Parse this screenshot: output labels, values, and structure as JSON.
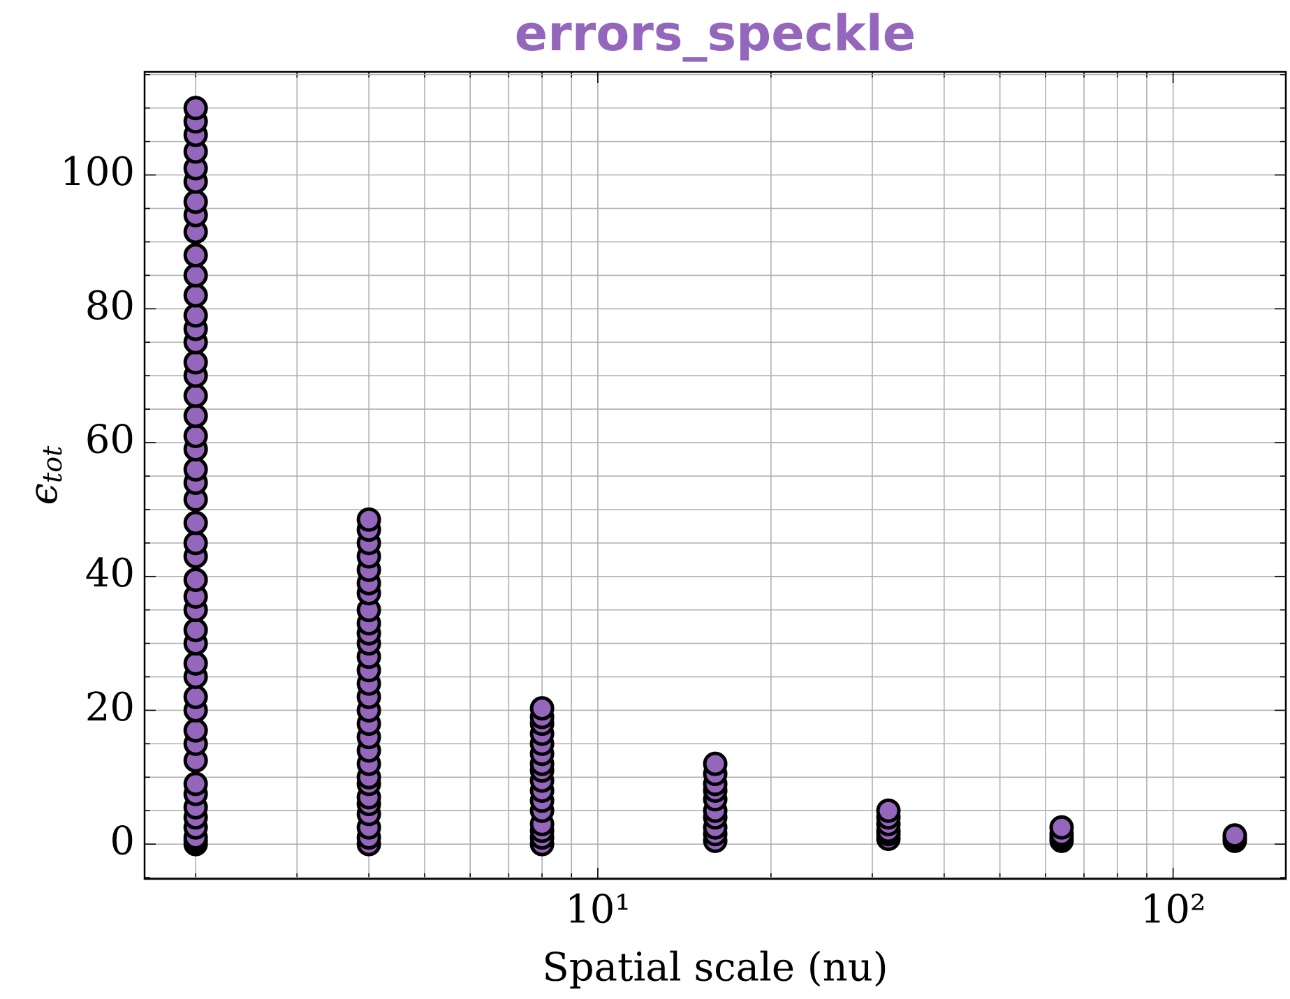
{
  "chart_data": {
    "type": "scatter",
    "title": "errors_speckle",
    "xlabel": "Spatial scale (nu)",
    "ylabel": {
      "symbol": "ϵ",
      "subscript": "tot"
    },
    "xscale": "log",
    "grid": true,
    "color": "#9467bd",
    "edgecolor": "#000000",
    "xlim": [
      1.63,
      157
    ],
    "ylim": [
      -5.2,
      115.4
    ],
    "xticks": [
      {
        "value": 10,
        "label": "10¹"
      },
      {
        "value": 100,
        "label": "10²"
      }
    ],
    "xminor": [
      2,
      3,
      4,
      5,
      6,
      7,
      8,
      9,
      20,
      30,
      40,
      50,
      60,
      70,
      80,
      90
    ],
    "yticks": [
      0,
      20,
      40,
      60,
      80,
      100
    ],
    "yminor": [
      -5,
      5,
      10,
      15,
      25,
      30,
      35,
      45,
      50,
      55,
      65,
      70,
      75,
      85,
      90,
      95,
      105,
      110,
      115
    ],
    "x": [
      2,
      2,
      2,
      2,
      2,
      2,
      2,
      2,
      2,
      2,
      2,
      2,
      2,
      2,
      2,
      2,
      2,
      2,
      2,
      2,
      2,
      2,
      2,
      2,
      2,
      2,
      2,
      2,
      2,
      2,
      2,
      2,
      2,
      2,
      2,
      2,
      2,
      2,
      2,
      2,
      2,
      2,
      2,
      2,
      2,
      2,
      2,
      4,
      4,
      4,
      4,
      4,
      4,
      4,
      4,
      4,
      4,
      4,
      4,
      4,
      4,
      4,
      4,
      4,
      4,
      4,
      4,
      4,
      4,
      4,
      4,
      4,
      4,
      4,
      4,
      8,
      8,
      8,
      8,
      8,
      8,
      8,
      8,
      8,
      8,
      8,
      8,
      8,
      8,
      8,
      8,
      16,
      16,
      16,
      16,
      16,
      16,
      16,
      16,
      16,
      16,
      32,
      32,
      32,
      32,
      32,
      32,
      64,
      64,
      64,
      64,
      128,
      128,
      128
    ],
    "y": [
      0,
      0.5,
      1,
      2.5,
      4,
      5.5,
      7.5,
      9,
      12.5,
      15,
      17,
      20,
      22,
      25,
      27,
      30,
      32,
      35,
      37,
      39.5,
      43,
      45,
      48,
      51.5,
      54,
      56,
      59,
      61,
      64,
      67,
      70,
      72,
      75,
      77,
      79,
      82,
      85,
      88,
      91.5,
      94,
      96,
      99,
      101,
      103.5,
      106,
      108,
      110,
      0,
      1,
      2.5,
      4.5,
      6,
      7,
      9,
      10,
      12,
      14,
      16,
      18,
      20,
      22,
      24,
      26,
      28,
      30,
      31.5,
      33,
      35,
      37.5,
      39,
      41,
      43,
      45,
      47,
      48.5,
      0,
      1,
      2,
      3,
      5,
      6.5,
      8,
      9.5,
      11,
      12,
      13.5,
      15,
      16.5,
      18,
      19,
      20.3,
      0.5,
      1.5,
      2.5,
      4,
      5,
      6.7,
      8,
      9,
      10.5,
      12,
      0.8,
      1.5,
      2,
      3,
      4,
      5,
      0.5,
      1,
      1.5,
      2.5,
      0.5,
      0.8,
      1.3
    ]
  }
}
